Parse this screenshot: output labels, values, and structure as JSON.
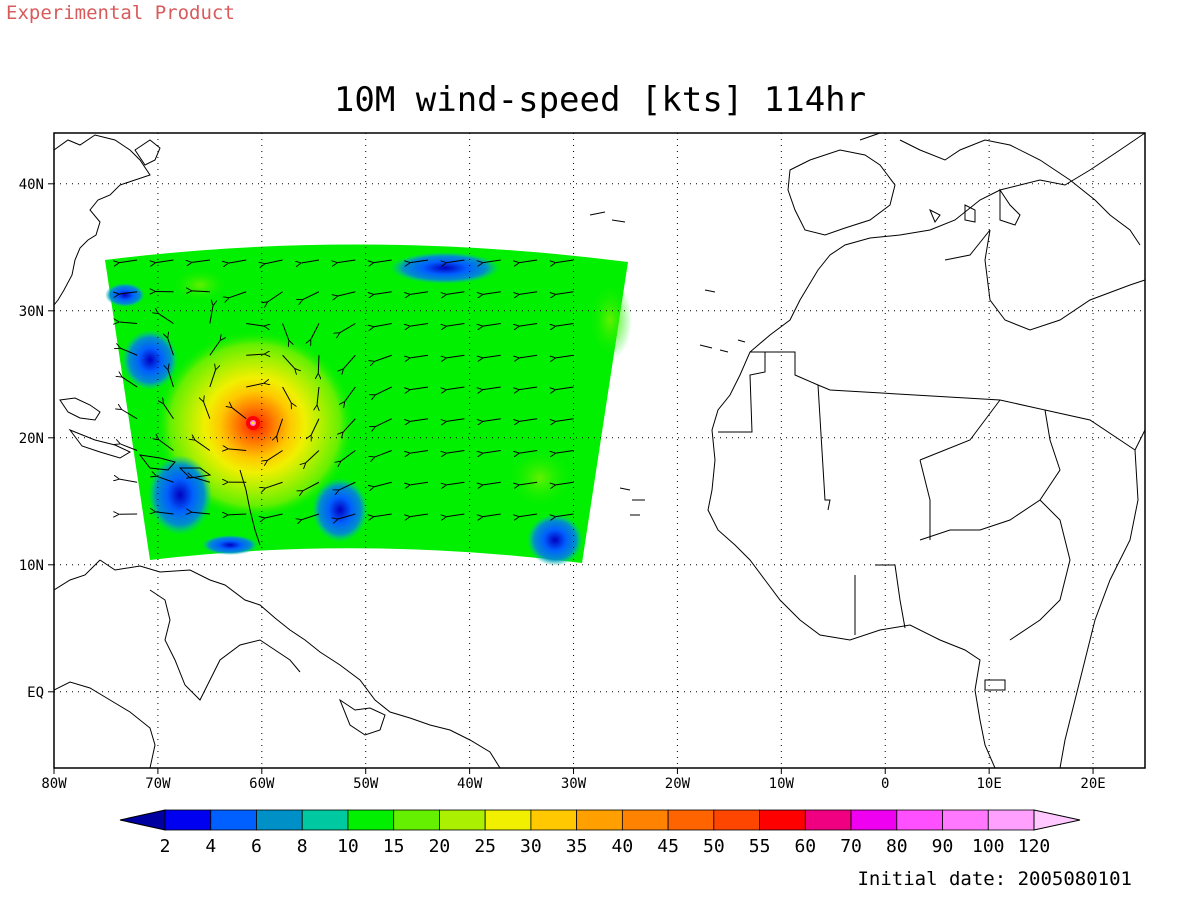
{
  "watermark": "Experimental Product",
  "title": "10M wind-speed [kts] 114hr",
  "initial_date": "Initial date: 2005080101",
  "map": {
    "lon_range": [
      -80,
      25
    ],
    "lat_range": [
      -6,
      44
    ],
    "lon_ticks": [
      {
        "lon": -80,
        "label": "80W"
      },
      {
        "lon": -70,
        "label": "70W"
      },
      {
        "lon": -60,
        "label": "60W"
      },
      {
        "lon": -50,
        "label": "50W"
      },
      {
        "lon": -40,
        "label": "40W"
      },
      {
        "lon": -30,
        "label": "30W"
      },
      {
        "lon": -20,
        "label": "20W"
      },
      {
        "lon": -10,
        "label": "10W"
      },
      {
        "lon": 0,
        "label": "0"
      },
      {
        "lon": 10,
        "label": "10E"
      },
      {
        "lon": 20,
        "label": "20E"
      }
    ],
    "lat_ticks": [
      {
        "lat": 40,
        "label": "40N"
      },
      {
        "lat": 30,
        "label": "30N"
      },
      {
        "lat": 20,
        "label": "20N"
      },
      {
        "lat": 10,
        "label": "10N"
      },
      {
        "lat": 0,
        "label": "EQ"
      }
    ],
    "grid": true,
    "storm_center": {
      "lon": -61,
      "lat": 22
    }
  },
  "colorbar": {
    "labels": [
      "2",
      "4",
      "6",
      "8",
      "10",
      "15",
      "20",
      "25",
      "30",
      "35",
      "40",
      "45",
      "50",
      "55",
      "60",
      "70",
      "80",
      "90",
      "100",
      "120"
    ],
    "colors": [
      "#0000a0",
      "#0000f0",
      "#0060ff",
      "#0090c8",
      "#00c8a0",
      "#00f000",
      "#64f000",
      "#aaf000",
      "#f0f000",
      "#ffc800",
      "#ffa000",
      "#ff8200",
      "#ff6400",
      "#ff4600",
      "#ff0000",
      "#f00080",
      "#f000f0",
      "#ff50ff",
      "#ff78ff",
      "#ffa0ff",
      "#ffc8ff"
    ]
  }
}
